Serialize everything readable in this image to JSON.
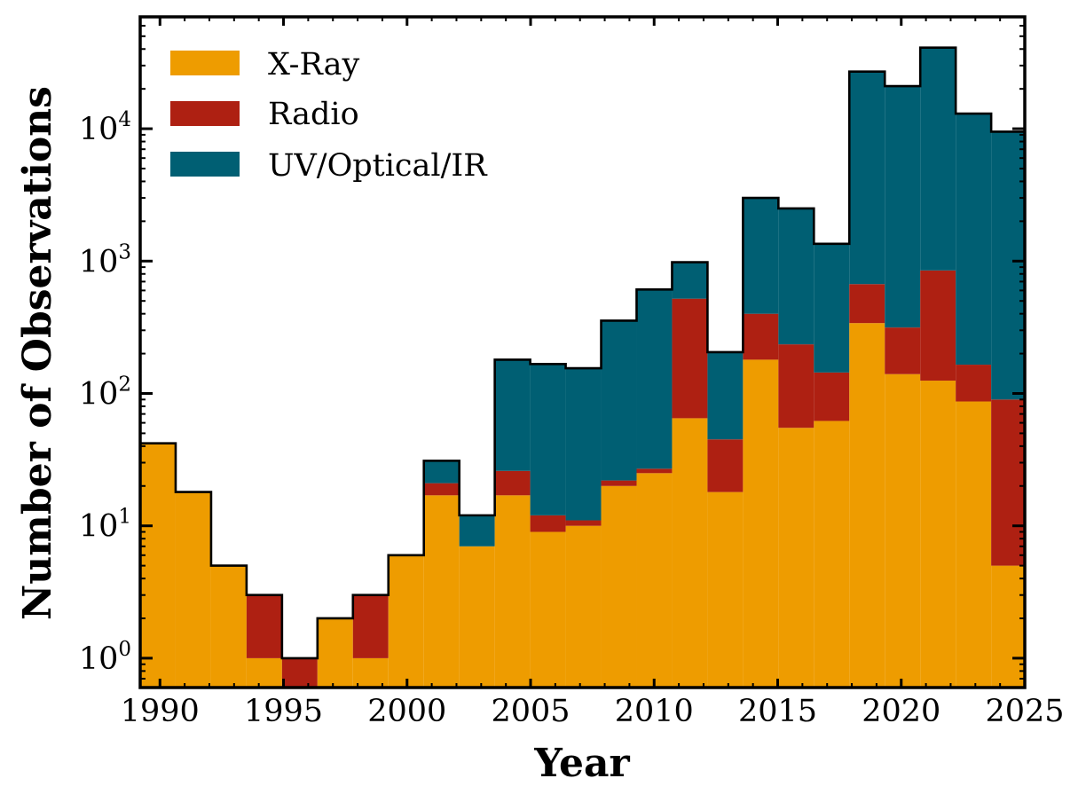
{
  "chart_data": {
    "type": "bar",
    "subtype": "stacked-step-histogram",
    "title": "",
    "xlabel": "Year",
    "ylabel": "Number of Observations",
    "yscale": "log",
    "xlim": [
      1989.2,
      2025
    ],
    "ylim": [
      0.6,
      70000
    ],
    "bin_start": 1989.2,
    "bin_width": 1.435,
    "x_ticks": [
      "1990",
      "1995",
      "2000",
      "2005",
      "2010",
      "2015",
      "2020",
      "2025"
    ],
    "y_ticks": [
      {
        "base": "10",
        "exp": "0"
      },
      {
        "base": "10",
        "exp": "1"
      },
      {
        "base": "10",
        "exp": "2"
      },
      {
        "base": "10",
        "exp": "3"
      },
      {
        "base": "10",
        "exp": "4"
      }
    ],
    "legend_position": "top-left",
    "series": [
      {
        "name": "X-Ray",
        "color": "#EE9C00",
        "values": [
          42,
          18,
          5,
          1,
          0,
          2,
          1,
          6,
          17,
          7,
          17,
          9,
          10,
          20,
          25,
          65,
          18,
          180,
          55,
          62,
          340,
          140,
          125,
          87,
          5
        ]
      },
      {
        "name": "Radio",
        "color": "#AE2012",
        "values": [
          0,
          0,
          0,
          2,
          1,
          0,
          2,
          0,
          4,
          0,
          9,
          3,
          1,
          2,
          2,
          455,
          27,
          220,
          180,
          82,
          330,
          175,
          725,
          78,
          85
        ]
      },
      {
        "name": "UV/Optical/IR",
        "color": "#005F73",
        "values": [
          0,
          0,
          0,
          0,
          0,
          0,
          0,
          0,
          10,
          5,
          154,
          155,
          144,
          333,
          583,
          460,
          160,
          2600,
          2265,
          1206,
          26330,
          20685,
          40150,
          12835,
          9410
        ]
      }
    ]
  }
}
